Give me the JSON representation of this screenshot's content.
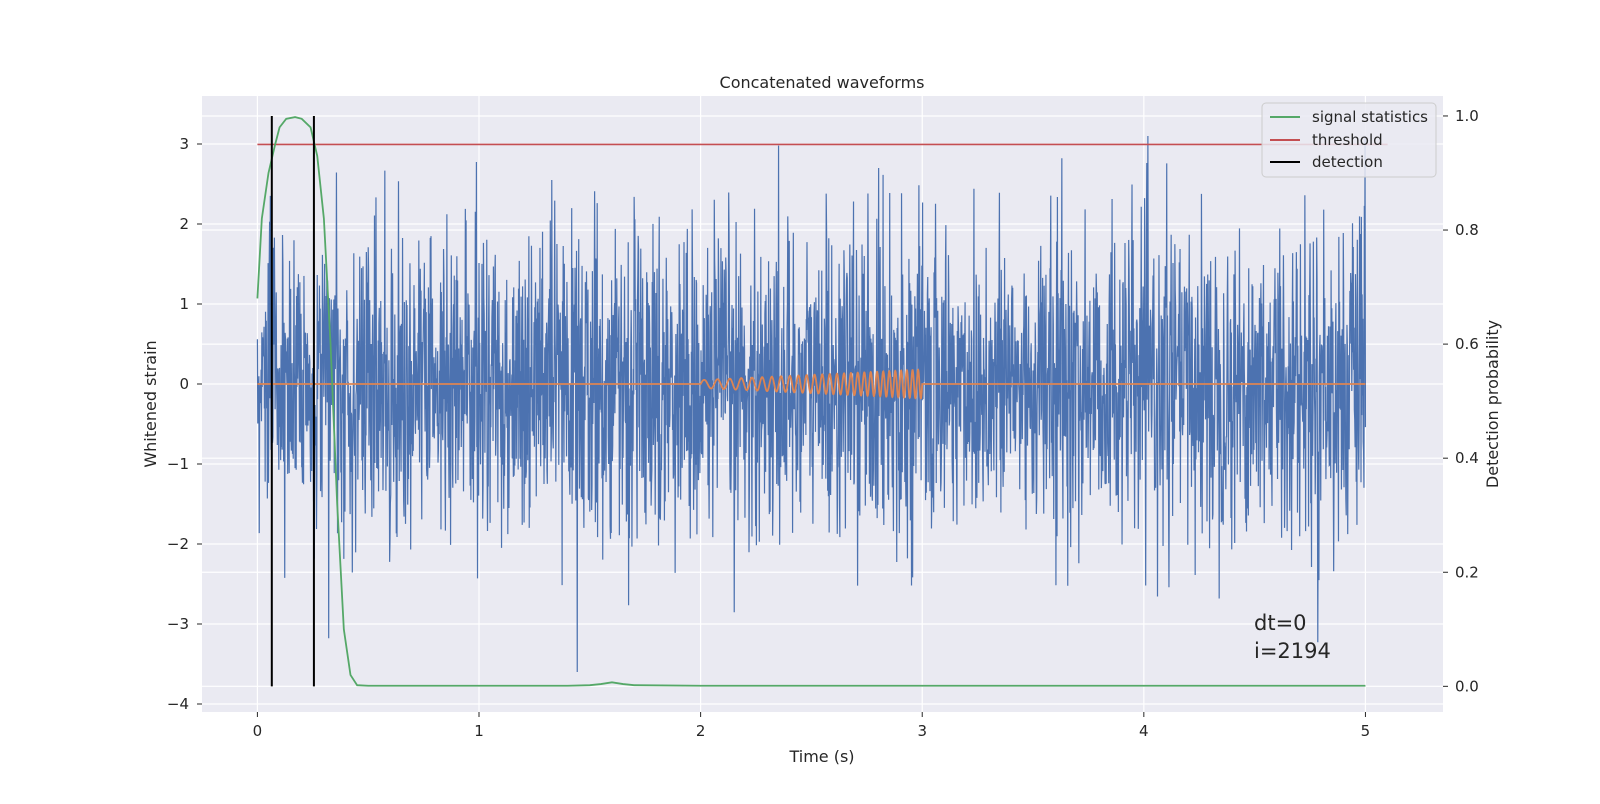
{
  "chart_data": {
    "type": "line",
    "title": "Concatenated waveforms",
    "xlabel": "Time (s)",
    "ylabel_left": "Whitened strain",
    "ylabel_right": "Detection probability",
    "xlim": [
      -0.25,
      5.35
    ],
    "ylim_left": [
      -4.1,
      3.6
    ],
    "ylim_right": [
      -0.045,
      1.035
    ],
    "x_ticks": [
      0,
      1,
      2,
      3,
      4,
      5
    ],
    "x_tick_labels": [
      "0",
      "1",
      "2",
      "3",
      "4",
      "5"
    ],
    "y_left_ticks": [
      -4,
      -3,
      -2,
      -1,
      0,
      1,
      2,
      3
    ],
    "y_left_tick_labels": [
      "−4",
      "−3",
      "−2",
      "−1",
      "0",
      "1",
      "2",
      "3"
    ],
    "y_right_ticks": [
      0.0,
      0.2,
      0.4,
      0.6,
      0.8,
      1.0
    ],
    "y_right_tick_labels": [
      "0.0",
      "0.2",
      "0.4",
      "0.6",
      "0.8",
      "1.0"
    ],
    "grid": true,
    "legend_position": "upper right",
    "annotation_lines": [
      "dt=0",
      "i=2194"
    ],
    "series": [
      {
        "name": "",
        "axis": "left",
        "color": "#4c72b0",
        "kind": "whitened noise, time 0 to 5 s, values roughly between -3.6 and 3.1",
        "x_range": [
          0,
          5
        ],
        "y_range": [
          -3.6,
          3.1
        ]
      },
      {
        "name": "",
        "axis": "left",
        "color": "#dd8452",
        "kind": "injected chirp, zero except between 2 and 3 s",
        "x_range": [
          2,
          3
        ],
        "amplitude_start": 0.05,
        "amplitude_end": 0.18,
        "cycles": 28
      },
      {
        "name": "signal statistics",
        "axis": "right",
        "color": "#55a868",
        "x": [
          0,
          0.02,
          0.05,
          0.08,
          0.1,
          0.13,
          0.17,
          0.2,
          0.24,
          0.27,
          0.3,
          0.33,
          0.36,
          0.39,
          0.42,
          0.45,
          0.5,
          1.0,
          1.4,
          1.5,
          1.55,
          1.6,
          1.65,
          1.7,
          2.0,
          3.0,
          4.0,
          5.0
        ],
        "values": [
          0.68,
          0.82,
          0.9,
          0.95,
          0.98,
          0.995,
          0.998,
          0.995,
          0.98,
          0.93,
          0.82,
          0.6,
          0.32,
          0.1,
          0.02,
          0.002,
          0.001,
          0.001,
          0.001,
          0.002,
          0.004,
          0.007,
          0.004,
          0.002,
          0.001,
          0.001,
          0.001,
          0.001
        ]
      },
      {
        "name": "threshold",
        "axis": "right",
        "color": "#c44e52",
        "value": 0.95,
        "x_range": [
          0,
          5.1
        ]
      },
      {
        "name": "detection",
        "axis": "right",
        "color": "#000000",
        "x": [
          0.065,
          0.255
        ],
        "y_range": [
          0,
          1.0
        ]
      }
    ]
  }
}
